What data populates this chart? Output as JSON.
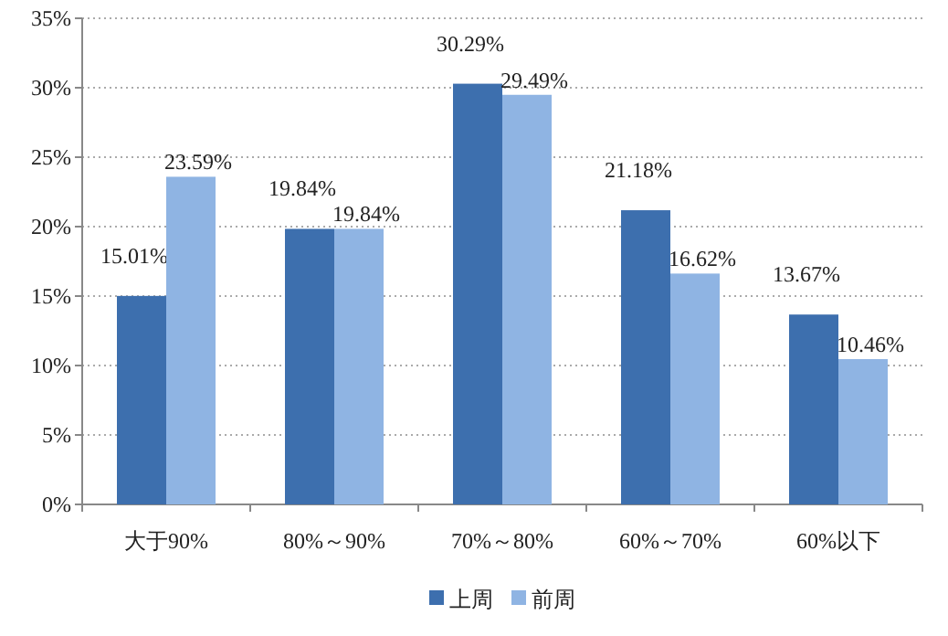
{
  "chart_data": {
    "type": "bar",
    "categories": [
      "大于90%",
      "80%～90%",
      "70%～80%",
      "60%～70%",
      "60%以下"
    ],
    "series": [
      {
        "name": "上周",
        "color": "#3d6fae",
        "values": [
          15.01,
          19.84,
          30.29,
          21.18,
          13.67
        ],
        "value_labels": [
          "15.01%",
          "19.84%",
          "30.29%",
          "21.18%",
          "13.67%"
        ]
      },
      {
        "name": "前周",
        "color": "#8fb4e3",
        "values": [
          23.59,
          19.84,
          29.49,
          16.62,
          10.46
        ],
        "value_labels": [
          "23.59%",
          "19.84%",
          "29.49%",
          "16.62%",
          "10.46%"
        ]
      }
    ],
    "ylim": [
      0,
      35
    ],
    "yticks": [
      {
        "value": 0,
        "label": "0%"
      },
      {
        "value": 5,
        "label": "5%"
      },
      {
        "value": 10,
        "label": "10%"
      },
      {
        "value": 15,
        "label": "15%"
      },
      {
        "value": 20,
        "label": "20%"
      },
      {
        "value": 25,
        "label": "25%"
      },
      {
        "value": 30,
        "label": "30%"
      },
      {
        "value": 35,
        "label": "35%"
      }
    ],
    "grid": "y",
    "legend": "bottom"
  }
}
